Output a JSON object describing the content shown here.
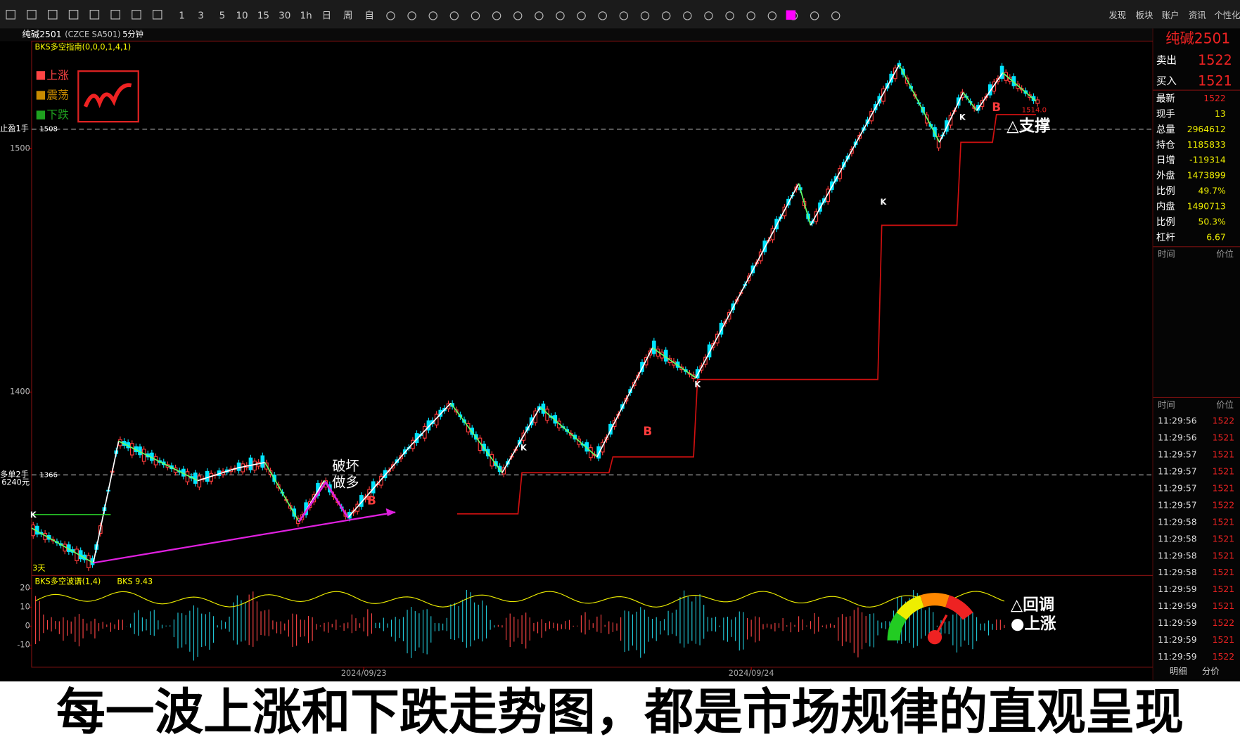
{
  "toolbar": {
    "periods": [
      "1",
      "3",
      "5",
      "10",
      "15",
      "30",
      "1h",
      "日",
      "周",
      "自"
    ],
    "menu": [
      "发现",
      "板块",
      "账户",
      "资讯",
      "个性化"
    ]
  },
  "symbol_bar": {
    "name": "纯碱2501",
    "code": "(CZCE SA501)",
    "period": "5分钟"
  },
  "main_chart": {
    "indicator": "BKS多空指南(0,0,0,1,4,1)",
    "legend": [
      "上涨",
      "震荡",
      "下跌"
    ],
    "price_ticks": [
      1500,
      1400
    ],
    "take_profit": {
      "label": "止盈1手",
      "price": 1508
    },
    "position": {
      "label": "多单2手",
      "price": 1366,
      "pnl": "6240元"
    },
    "annotations": {
      "break": "破坏",
      "long": "做多",
      "support": "△支撑",
      "support_price": "1514.0",
      "period": "3天"
    },
    "signals": [
      "B",
      "B",
      "B",
      "K",
      "K",
      "K",
      "K",
      "K"
    ]
  },
  "oscillator": {
    "title": "BKS多空波谱(1,4)",
    "value_label": "BKS 9.43",
    "yticks": [
      20,
      10,
      0,
      -10
    ],
    "legend": [
      "△回调",
      "●上涨"
    ]
  },
  "dates": [
    "2024/09/23",
    "2024/09/24"
  ],
  "quote_panel": {
    "title": "纯碱2501",
    "ask": {
      "label": "卖出",
      "price": 1522
    },
    "bid": {
      "label": "买入",
      "price": 1521
    },
    "rows": [
      [
        "最新",
        1522
      ],
      [
        "现手",
        13
      ],
      [
        "总量",
        2964612
      ],
      [
        "持仓",
        1185833
      ],
      [
        "日增",
        -119314
      ],
      [
        "外盘",
        1473899
      ],
      [
        "比例",
        "49.7%"
      ],
      [
        "内盘",
        1490713
      ],
      [
        "比例",
        "50.3%"
      ],
      [
        "杠杆",
        6.67
      ]
    ],
    "list_headers": [
      "时间",
      "价位"
    ]
  },
  "ticks": {
    "headers": [
      "时间",
      "价位"
    ],
    "rows": [
      [
        "11:29:56",
        1522
      ],
      [
        "11:29:56",
        1521
      ],
      [
        "11:29:57",
        1521
      ],
      [
        "11:29:57",
        1521
      ],
      [
        "11:29:57",
        1521
      ],
      [
        "11:29:57",
        1522
      ],
      [
        "11:29:58",
        1521
      ],
      [
        "11:29:58",
        1521
      ],
      [
        "11:29:58",
        1521
      ],
      [
        "11:29:58",
        1521
      ],
      [
        "11:29:59",
        1521
      ],
      [
        "11:29:59",
        1521
      ],
      [
        "11:29:59",
        1522
      ],
      [
        "11:29:59",
        1521
      ],
      [
        "11:29:59",
        1522
      ]
    ]
  },
  "tabs": [
    "明细",
    "分价"
  ],
  "caption": "每一波上涨和下跌走势图，都是市场规律的直观呈现"
}
